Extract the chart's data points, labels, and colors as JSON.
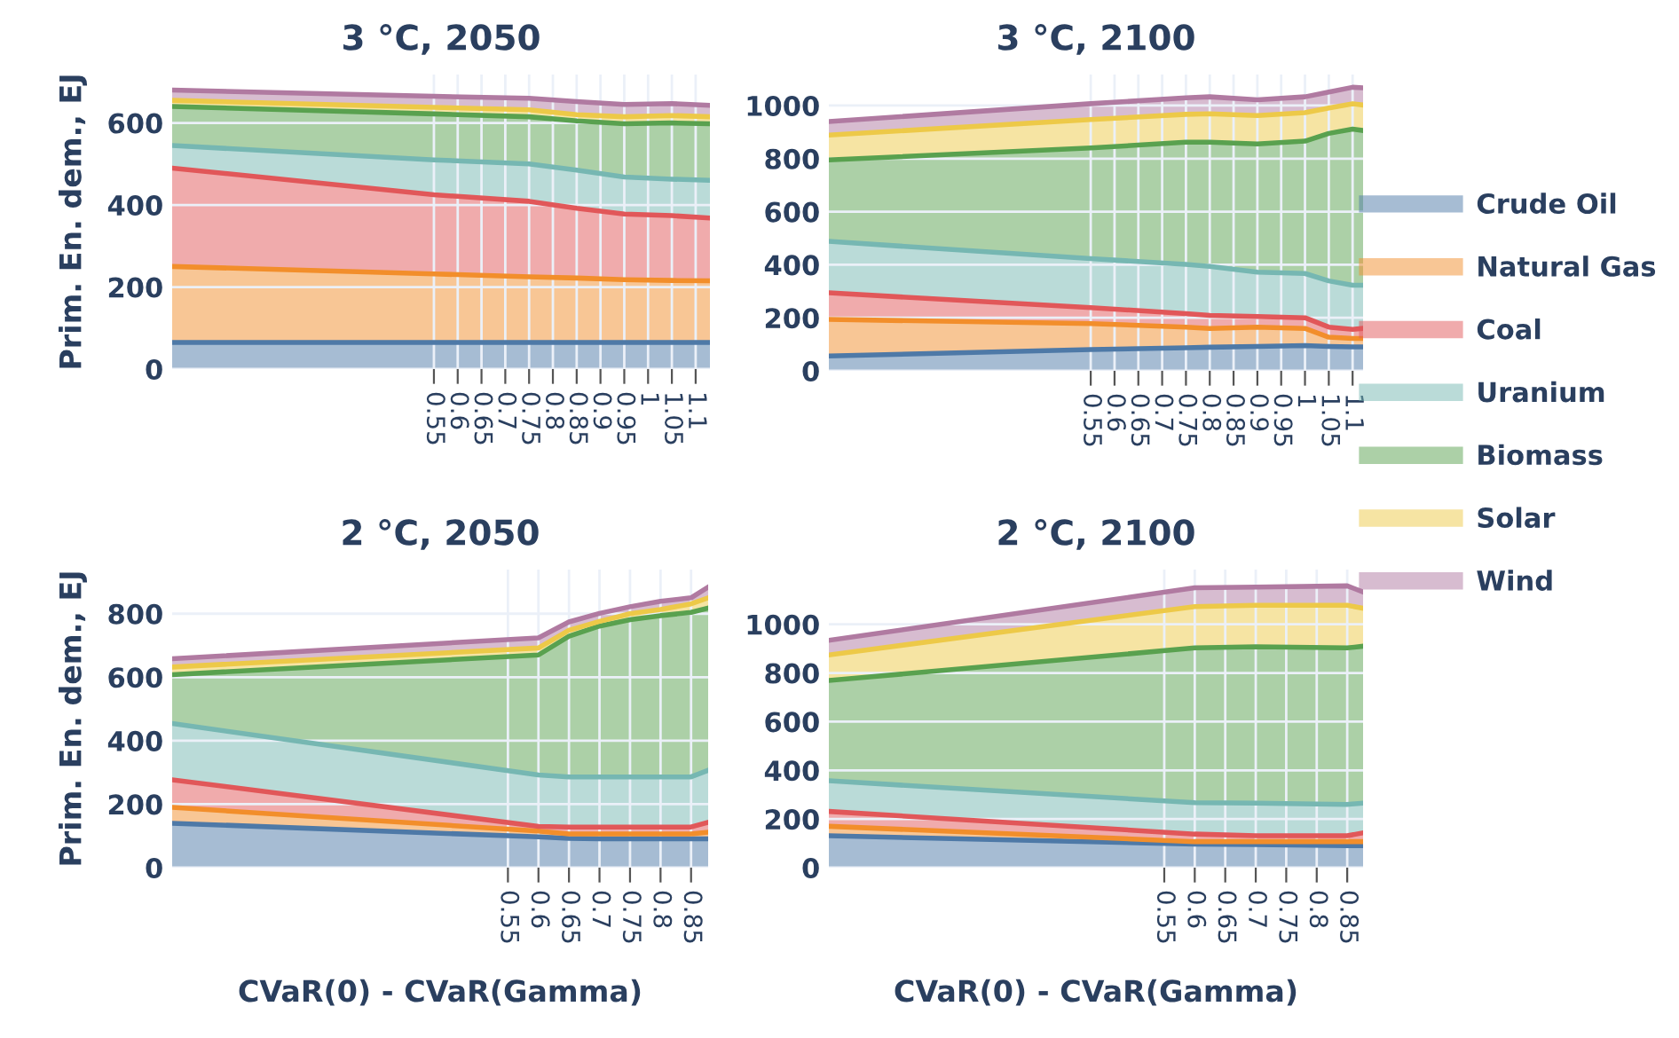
{
  "chart_data": [
    {
      "type": "area",
      "stacked": true,
      "title": "3 °C, 2050",
      "ylabel": "Prim. En. dem., EJ",
      "grid": true,
      "legend": "right",
      "x": [
        0,
        0.55,
        0.75,
        0.85,
        0.95,
        1.05,
        1.13
      ],
      "xlim": [
        0,
        1.13
      ],
      "xticks": [
        0.55,
        0.6,
        0.65,
        0.7,
        0.75,
        0.8,
        0.85,
        0.9,
        0.95,
        1,
        1.05,
        1.1
      ],
      "ylim": [
        0,
        718
      ],
      "yticks": [
        0,
        200,
        400,
        600
      ],
      "series": [
        {
          "name": "Crude Oil",
          "color": "#4e79a7",
          "values": [
            65,
            65,
            65,
            65,
            65,
            65,
            65
          ]
        },
        {
          "name": "Natural Gas",
          "color": "#f28e2b",
          "values": [
            185,
            167,
            160,
            157,
            153,
            151,
            150
          ]
        },
        {
          "name": "Coal",
          "color": "#e15759",
          "values": [
            240,
            193,
            184,
            170,
            160,
            158,
            153
          ]
        },
        {
          "name": "Uranium",
          "color": "#76b7b2",
          "values": [
            55,
            85,
            91,
            93,
            90,
            89,
            92
          ]
        },
        {
          "name": "Biomass",
          "color": "#59a14f",
          "values": [
            95,
            112,
            115,
            120,
            130,
            137,
            138
          ]
        },
        {
          "name": "Solar",
          "color": "#edc948",
          "values": [
            15,
            16,
            17,
            15,
            17,
            18,
            17
          ]
        },
        {
          "name": "Wind",
          "color": "#b07aa1",
          "values": [
            25,
            27,
            28,
            32,
            30,
            29,
            28
          ]
        }
      ]
    },
    {
      "type": "area",
      "stacked": true,
      "title": "3 °C, 2100",
      "grid": true,
      "x": [
        0,
        0.55,
        0.75,
        0.8,
        0.9,
        1.0,
        1.05,
        1.1,
        1.122
      ],
      "xlim": [
        0,
        1.122
      ],
      "xticks": [
        0.55,
        0.6,
        0.65,
        0.7,
        0.75,
        0.8,
        0.85,
        0.9,
        0.95,
        1,
        1.05,
        1.1
      ],
      "ylim": [
        0,
        1117
      ],
      "yticks": [
        0,
        200,
        400,
        600,
        800,
        1000
      ],
      "series": [
        {
          "name": "Crude Oil",
          "color": "#4e79a7",
          "values": [
            56,
            80,
            87,
            89,
            92,
            95,
            92,
            90,
            90
          ]
        },
        {
          "name": "Natural Gas",
          "color": "#f28e2b",
          "values": [
            138,
            98,
            78,
            71,
            73,
            65,
            35,
            32,
            32
          ]
        },
        {
          "name": "Coal",
          "color": "#e15759",
          "values": [
            100,
            60,
            51,
            49,
            40,
            40,
            38,
            34,
            38
          ]
        },
        {
          "name": "Uranium",
          "color": "#76b7b2",
          "values": [
            194,
            185,
            185,
            185,
            167,
            167,
            174,
            167,
            163
          ]
        },
        {
          "name": "Biomass",
          "color": "#59a14f",
          "values": [
            307,
            417,
            461,
            468,
            483,
            499,
            556,
            588,
            583
          ]
        },
        {
          "name": "Solar",
          "color": "#edc948",
          "values": [
            94,
            107,
            105,
            107,
            107,
            107,
            96,
            96,
            96
          ]
        },
        {
          "name": "Wind",
          "color": "#b07aa1",
          "values": [
            51,
            60,
            62,
            64,
            60,
            60,
            60,
            62,
            65
          ]
        }
      ]
    },
    {
      "type": "area",
      "stacked": true,
      "title": "2 °C, 2050",
      "ylabel": "Prim. En. dem., EJ",
      "xlabel": "CVaR(0) - CVaR(Gamma)",
      "grid": true,
      "x": [
        0,
        0.6,
        0.65,
        0.7,
        0.75,
        0.8,
        0.85,
        0.878
      ],
      "xlim": [
        0,
        0.878
      ],
      "xticks": [
        0.55,
        0.6,
        0.65,
        0.7,
        0.75,
        0.8,
        0.85
      ],
      "ylim": [
        0,
        939
      ],
      "yticks": [
        0,
        200,
        400,
        600,
        800
      ],
      "series": [
        {
          "name": "Crude Oil",
          "color": "#4e79a7",
          "values": [
            140,
            97,
            92,
            91,
            91,
            91,
            91,
            91
          ]
        },
        {
          "name": "Natural Gas",
          "color": "#f28e2b",
          "values": [
            50,
            18,
            14,
            15,
            15,
            15,
            15,
            21
          ]
        },
        {
          "name": "Coal",
          "color": "#e15759",
          "values": [
            87,
            15,
            22,
            22,
            22,
            22,
            22,
            31
          ]
        },
        {
          "name": "Uranium",
          "color": "#76b7b2",
          "values": [
            177,
            162,
            158,
            158,
            158,
            158,
            158,
            164
          ]
        },
        {
          "name": "Biomass",
          "color": "#59a14f",
          "values": [
            154,
            378,
            443,
            475,
            495,
            508,
            518,
            511
          ]
        },
        {
          "name": "Solar",
          "color": "#edc948",
          "values": [
            24,
            22,
            19,
            15,
            19,
            19,
            27,
            32
          ]
        },
        {
          "name": "Wind",
          "color": "#b07aa1",
          "values": [
            26,
            32,
            26,
            25,
            22,
            26,
            19,
            34
          ]
        }
      ]
    },
    {
      "type": "area",
      "stacked": true,
      "title": "2 °C, 2100",
      "xlabel": "CVaR(0) - CVaR(Gamma)",
      "grid": true,
      "x": [
        0,
        0.6,
        0.7,
        0.85,
        0.876
      ],
      "xlim": [
        0,
        0.876
      ],
      "xticks": [
        0.55,
        0.6,
        0.65,
        0.7,
        0.75,
        0.8,
        0.85
      ],
      "ylim": [
        0,
        1225
      ],
      "yticks": [
        0,
        200,
        400,
        600,
        800,
        1000
      ],
      "series": [
        {
          "name": "Crude Oil",
          "color": "#4e79a7",
          "values": [
            131,
            97,
            95,
            90,
            90
          ]
        },
        {
          "name": "Natural Gas",
          "color": "#f28e2b",
          "values": [
            39,
            10,
            12,
            17,
            17
          ]
        },
        {
          "name": "Coal",
          "color": "#e15759",
          "values": [
            61,
            31,
            24,
            24,
            36
          ]
        },
        {
          "name": "Uranium",
          "color": "#76b7b2",
          "values": [
            126,
            129,
            134,
            129,
            122
          ]
        },
        {
          "name": "Biomass",
          "color": "#59a14f",
          "values": [
            412,
            636,
            643,
            643,
            645
          ]
        },
        {
          "name": "Solar",
          "color": "#edc948",
          "values": [
            105,
            170,
            170,
            175,
            156
          ]
        },
        {
          "name": "Wind",
          "color": "#b07aa1",
          "values": [
            60,
            77,
            75,
            80,
            67
          ]
        }
      ]
    }
  ]
}
